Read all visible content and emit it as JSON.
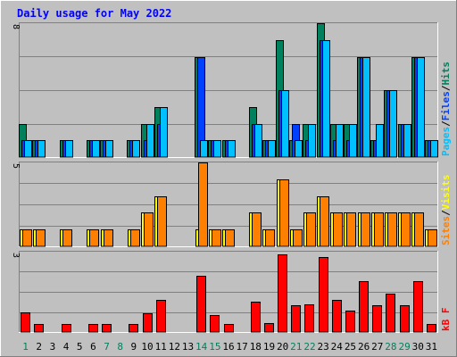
{
  "chart_data": [
    {
      "type": "bar",
      "title": "Daily usage for May 2022",
      "categories": [
        "1",
        "2",
        "3",
        "4",
        "5",
        "6",
        "7",
        "8",
        "9",
        "10",
        "11",
        "12",
        "13",
        "14",
        "15",
        "16",
        "17",
        "18",
        "19",
        "20",
        "21",
        "22",
        "23",
        "24",
        "25",
        "26",
        "27",
        "28",
        "29",
        "30",
        "31"
      ],
      "weekend_days": [
        1,
        7,
        8,
        14,
        15,
        21,
        22,
        28,
        29
      ],
      "ylim": [
        0,
        8
      ],
      "ytick": "8",
      "side_labels": [
        "Pages",
        "Files",
        "Hits"
      ],
      "series": [
        {
          "name": "Hits",
          "color": "#00805c",
          "values": [
            2,
            1,
            0,
            1,
            0,
            1,
            1,
            0,
            1,
            2,
            3,
            0,
            0,
            6,
            1,
            1,
            0,
            3,
            1,
            7,
            1,
            2,
            8,
            2,
            2,
            6,
            1,
            4,
            2,
            6,
            1
          ]
        },
        {
          "name": "Files",
          "color": "#0040ff",
          "values": [
            1,
            1,
            0,
            1,
            0,
            1,
            1,
            0,
            1,
            1,
            2,
            0,
            0,
            6,
            1,
            1,
            0,
            2,
            1,
            4,
            2,
            1,
            7,
            1,
            1,
            6,
            1,
            4,
            2,
            6,
            1
          ]
        },
        {
          "name": "Pages",
          "color": "#00c0ff",
          "values": [
            1,
            1,
            0,
            1,
            0,
            1,
            1,
            0,
            1,
            2,
            3,
            0,
            0,
            1,
            1,
            1,
            0,
            2,
            1,
            4,
            1,
            2,
            7,
            2,
            2,
            6,
            2,
            4,
            2,
            6,
            1
          ]
        }
      ]
    },
    {
      "type": "bar",
      "categories": [
        "1",
        "2",
        "3",
        "4",
        "5",
        "6",
        "7",
        "8",
        "9",
        "10",
        "11",
        "12",
        "13",
        "14",
        "15",
        "16",
        "17",
        "18",
        "19",
        "20",
        "21",
        "22",
        "23",
        "24",
        "25",
        "26",
        "27",
        "28",
        "29",
        "30",
        "31"
      ],
      "ylim": [
        0,
        5
      ],
      "ytick": "5",
      "side_labels": [
        "Sites",
        "Visits"
      ],
      "series": [
        {
          "name": "Visits",
          "color": "#ffff00",
          "values": [
            1,
            1,
            0,
            1,
            0,
            1,
            1,
            0,
            1,
            2,
            3,
            0,
            0,
            1,
            1,
            1,
            0,
            2,
            1,
            4,
            1,
            2,
            3,
            2,
            2,
            2,
            2,
            2,
            2,
            2,
            1
          ]
        },
        {
          "name": "Sites",
          "color": "#ff8000",
          "values": [
            1,
            1,
            0,
            1,
            0,
            1,
            1,
            0,
            1,
            2,
            3,
            0,
            0,
            5,
            1,
            1,
            0,
            2,
            1,
            4,
            1,
            2,
            3,
            2,
            2,
            2,
            2,
            2,
            2,
            2,
            1
          ]
        }
      ]
    },
    {
      "type": "bar",
      "categories": [
        "1",
        "2",
        "3",
        "4",
        "5",
        "6",
        "7",
        "8",
        "9",
        "10",
        "11",
        "12",
        "13",
        "14",
        "15",
        "16",
        "17",
        "18",
        "19",
        "20",
        "21",
        "22",
        "23",
        "24",
        "25",
        "26",
        "27",
        "28",
        "29",
        "30",
        "31"
      ],
      "ylim": [
        0,
        3
      ],
      "ytick": "3",
      "side_labels": [
        "kB F"
      ],
      "series": [
        {
          "name": "kB F",
          "color": "#ff0000",
          "values": [
            0.75,
            0.3,
            0,
            0.3,
            0,
            0.3,
            0.3,
            0,
            0.3,
            0.7,
            1.2,
            0,
            0,
            2.1,
            0.65,
            0.3,
            0,
            1.15,
            0.35,
            2.9,
            1.0,
            1.05,
            2.8,
            1.2,
            0.8,
            1.9,
            1.0,
            1.45,
            1.0,
            1.9,
            0.3
          ]
        }
      ]
    }
  ],
  "colors": {
    "background": "#c0c0c0",
    "grid": "#808080",
    "title": "#0000ff",
    "weekend_label": "#00805c",
    "weekday_label": "#000000"
  }
}
